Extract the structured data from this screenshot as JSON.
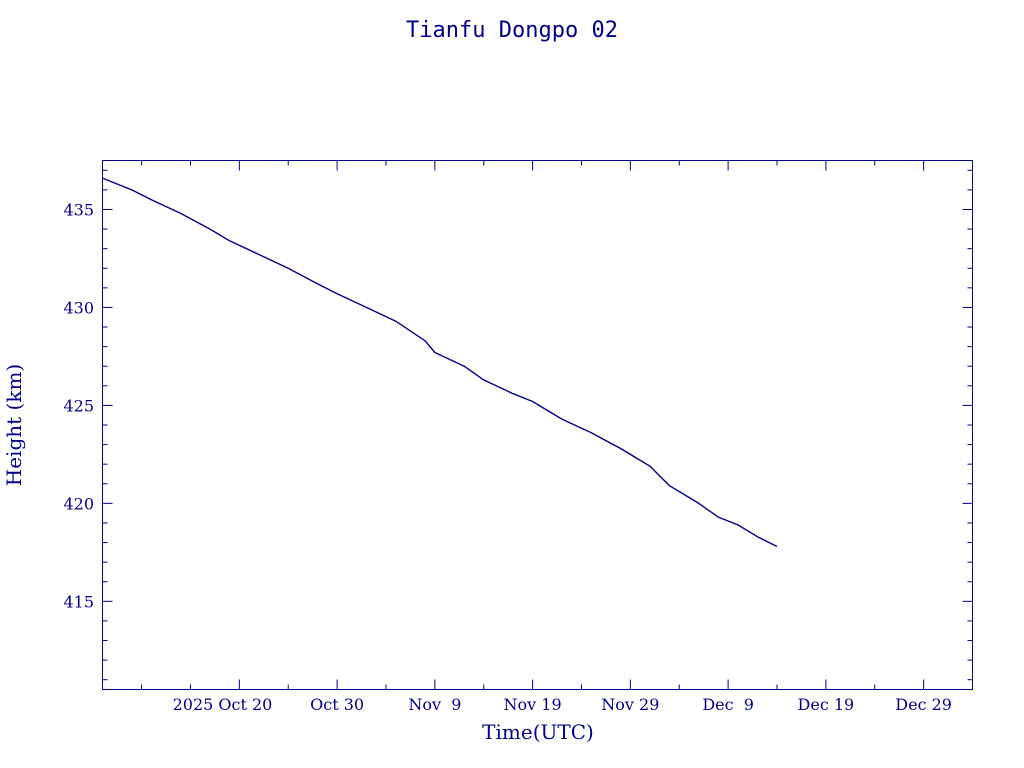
{
  "chart_data": {
    "type": "line",
    "title": "Tianfu Dongpo 02",
    "xlabel": "Time(UTC)",
    "ylabel": "Height (km)",
    "xlim": [
      "2025-10-06",
      "2026-01-03"
    ],
    "ylim": [
      410.5,
      437.5
    ],
    "x_ticks": [
      {
        "date": "2025-10-20",
        "label": "2025 Oct 20"
      },
      {
        "date": "2025-10-30",
        "label": "Oct 30"
      },
      {
        "date": "2025-11-09",
        "label": "Nov  9"
      },
      {
        "date": "2025-11-19",
        "label": "Nov 19"
      },
      {
        "date": "2025-11-29",
        "label": "Nov 29"
      },
      {
        "date": "2025-12-09",
        "label": "Dec  9"
      },
      {
        "date": "2025-12-19",
        "label": "Dec 19"
      },
      {
        "date": "2025-12-29",
        "label": "Dec 29"
      }
    ],
    "y_ticks": [
      415,
      420,
      425,
      430,
      435
    ],
    "grid": false,
    "series": [
      {
        "color": "#00008b",
        "x": [
          "2025-10-06",
          "2025-10-09",
          "2025-10-11",
          "2025-10-14",
          "2025-10-17",
          "2025-10-19",
          "2025-10-22",
          "2025-10-25",
          "2025-10-28",
          "2025-10-30",
          "2025-11-02",
          "2025-11-05",
          "2025-11-08",
          "2025-11-09",
          "2025-11-12",
          "2025-11-14",
          "2025-11-17",
          "2025-11-19",
          "2025-11-22",
          "2025-11-25",
          "2025-11-28",
          "2025-12-01",
          "2025-12-03",
          "2025-12-06",
          "2025-12-08",
          "2025-12-10",
          "2025-12-12",
          "2025-12-14"
        ],
        "y": [
          436.6,
          436.0,
          435.5,
          434.8,
          434.0,
          433.4,
          432.7,
          432.0,
          431.2,
          430.7,
          430.0,
          429.3,
          428.3,
          427.7,
          427.0,
          426.3,
          425.6,
          425.2,
          424.3,
          423.6,
          422.8,
          421.9,
          420.9,
          420.0,
          419.3,
          418.9,
          418.3,
          417.8
        ]
      }
    ]
  }
}
